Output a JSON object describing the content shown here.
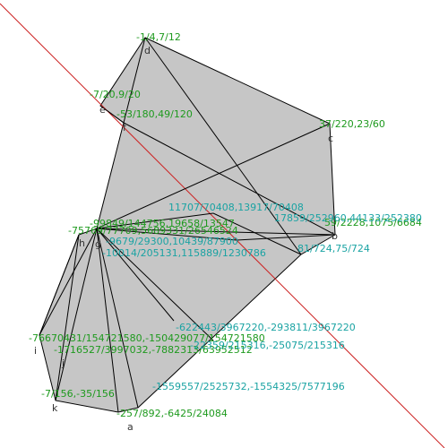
{
  "figure": {
    "points": [
      {
        "id": "a",
        "letter": "a",
        "coord": "-257/892,-6425/24084"
      },
      {
        "id": "b",
        "letter": "b",
        "coord": "81/724,75/724"
      },
      {
        "id": "c",
        "letter": "c",
        "coord": "37/220,23/60"
      },
      {
        "id": "d",
        "letter": "d",
        "coord": "-1/4,7/12"
      },
      {
        "id": "e",
        "letter": "e",
        "coord": "-7/20,9/20"
      },
      {
        "id": "f",
        "letter": "f",
        "coord": "-53/180,49/120"
      },
      {
        "id": "g",
        "letter": "g",
        "coord": ""
      },
      {
        "id": "h",
        "letter": "h",
        "coord": "-75769/77709"
      },
      {
        "id": "i",
        "letter": "i",
        "coord": "-76670431/154721580,-150429077/154721580"
      },
      {
        "id": "j",
        "letter": "j",
        "coord": "-1716527/3997032,-7882313/63952512"
      },
      {
        "id": "k",
        "letter": "k",
        "coord": "-7/156,-35/156"
      }
    ],
    "extra_labels": [
      {
        "id": "green_right",
        "text": "59/2228,1075/6684"
      },
      {
        "id": "teal_upper_mid",
        "text": "11707/70408,13917/70408"
      },
      {
        "id": "teal_upper_right",
        "text": "17859/252960,44133/252380"
      },
      {
        "id": "green_left_stack_1",
        "text": "-99849/144756,19658/13547"
      },
      {
        "id": "green_left_stack_2",
        "text": "-75769/77709,5689331/26546524"
      },
      {
        "id": "teal_mid_1",
        "text": "-9679/29300,10439/87900"
      },
      {
        "id": "teal_mid_2",
        "text": "-10014/205131,115889/1230786"
      },
      {
        "id": "teal_lower_1",
        "text": "-622443/3967220,-293811/3967220"
      },
      {
        "id": "teal_lower_2",
        "text": "-22359/215316,-25075/215316"
      },
      {
        "id": "teal_lower_3",
        "text": "-1559557/2525732,-1554325/7577196"
      }
    ]
  }
}
